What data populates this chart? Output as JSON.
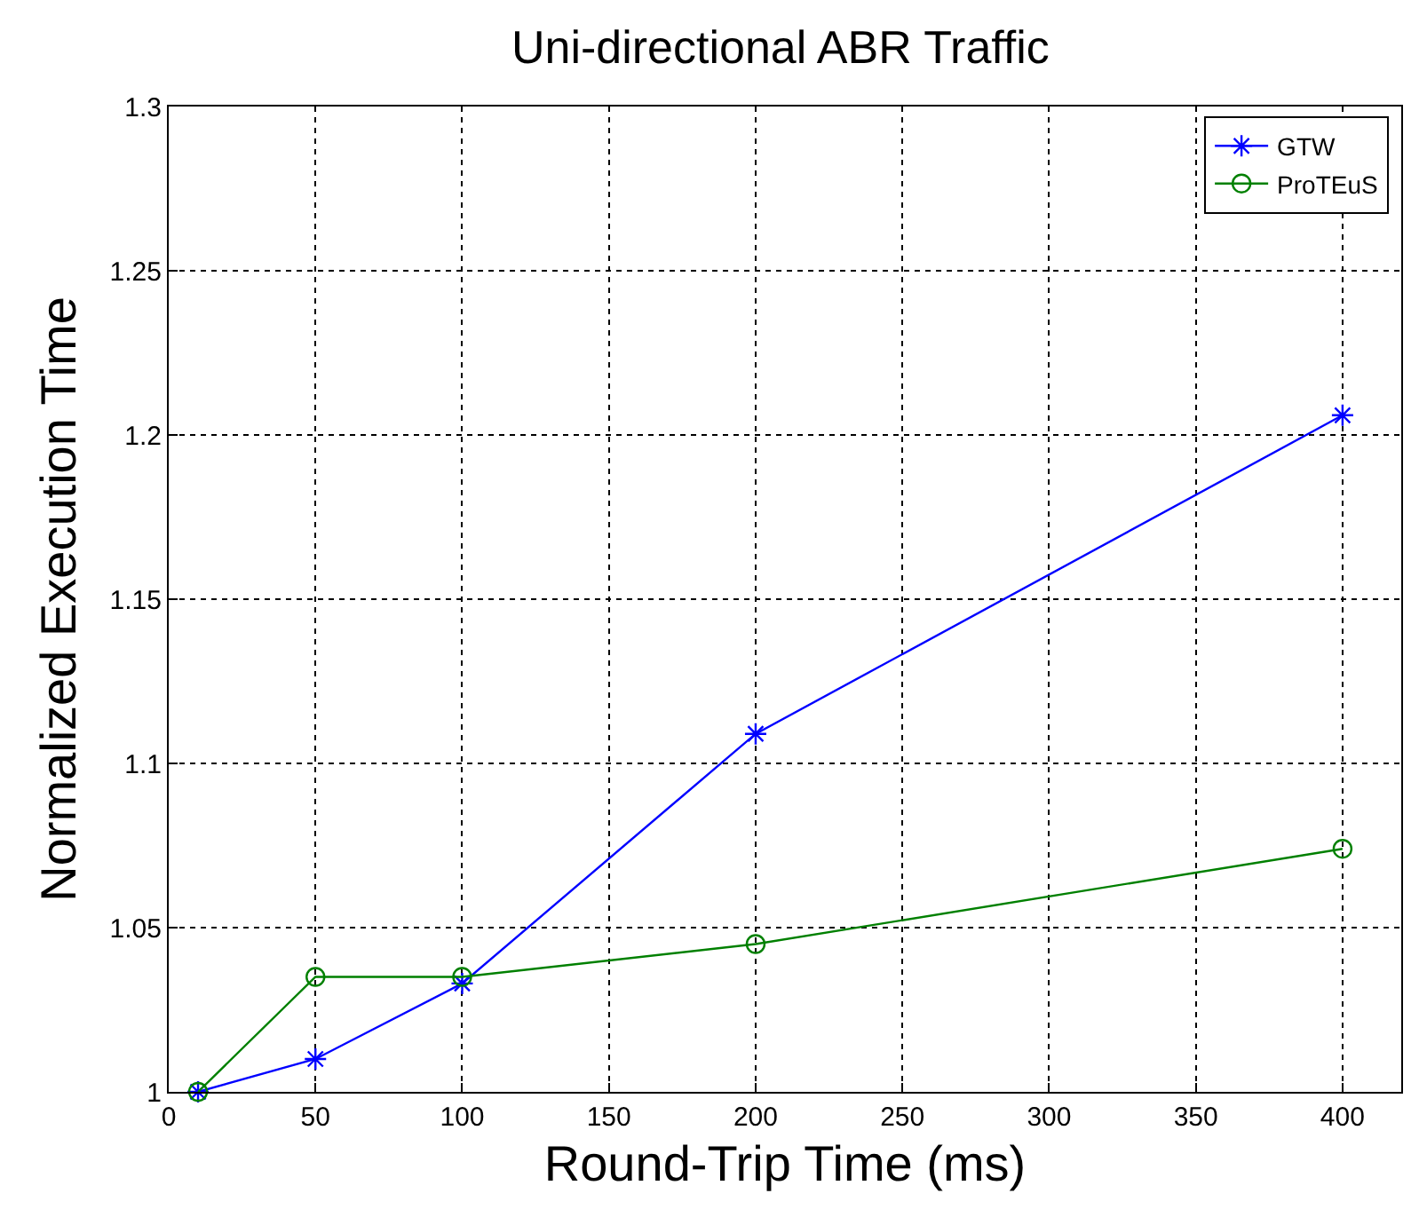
{
  "chart_data": {
    "type": "line",
    "title": "Uni-directional ABR Traffic",
    "xlabel": "Round-Trip Time (ms)",
    "ylabel": "Normalized Execution Time",
    "x": [
      10,
      50,
      100,
      200,
      400
    ],
    "series": [
      {
        "name": "GTW",
        "color": "#0000ff",
        "marker": "cross",
        "values": [
          1.0,
          1.01,
          1.033,
          1.109,
          1.206
        ]
      },
      {
        "name": "ProTEuS",
        "color": "#008000",
        "marker": "circle",
        "values": [
          1.0,
          1.035,
          1.035,
          1.045,
          1.074
        ]
      }
    ],
    "xlim": [
      0,
      420
    ],
    "xticks": [
      0,
      50,
      100,
      150,
      200,
      250,
      300,
      350,
      400
    ],
    "ylim": [
      1,
      1.3
    ],
    "yticks": [
      1,
      1.05,
      1.1,
      1.15,
      1.2,
      1.25,
      1.3
    ],
    "grid": true,
    "legend": "top right",
    "line_style": "solid"
  }
}
